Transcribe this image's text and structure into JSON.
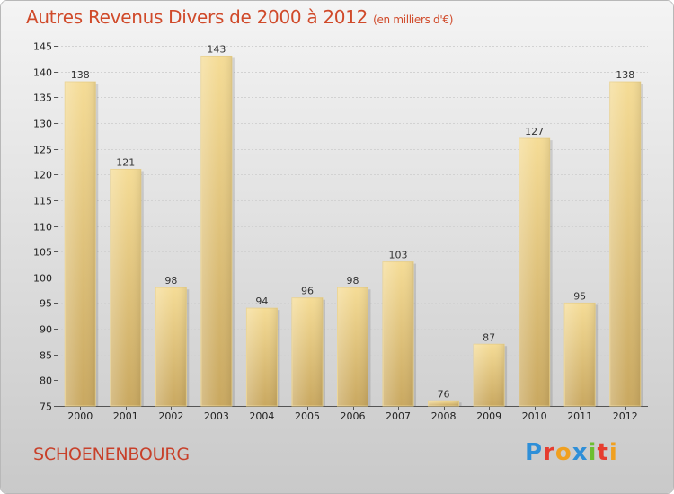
{
  "page": {
    "title": "Autres Revenus Divers de 2000 à 2012",
    "subtitle": "(en milliers d'€)",
    "commune": "SCHOENENBOURG",
    "logo": [
      {
        "ch": "P",
        "color": "#2e8fd8"
      },
      {
        "ch": "r",
        "color": "#e63d2f"
      },
      {
        "ch": "o",
        "color": "#f0a020"
      },
      {
        "ch": "x",
        "color": "#2e8fd8"
      },
      {
        "ch": "i",
        "color": "#6cbf30"
      },
      {
        "ch": "t",
        "color": "#e63d2f"
      },
      {
        "ch": "i",
        "color": "#f0a020"
      }
    ]
  },
  "chart_data": {
    "type": "bar",
    "categories": [
      "2000",
      "2001",
      "2002",
      "2003",
      "2004",
      "2005",
      "2006",
      "2007",
      "2008",
      "2009",
      "2010",
      "2011",
      "2012"
    ],
    "values": [
      138,
      121,
      98,
      143,
      94,
      96,
      98,
      103,
      76,
      87,
      127,
      95,
      138
    ],
    "title": "Autres Revenus Divers de 2000 à 2012",
    "subtitle": "(en milliers d'€)",
    "xlabel": "",
    "ylabel": "",
    "ylim": [
      75,
      145
    ],
    "yticks": [
      75,
      80,
      85,
      90,
      95,
      100,
      105,
      110,
      115,
      120,
      125,
      130,
      135,
      140,
      145
    ],
    "grid": "horizontal",
    "data_labels": true,
    "bar_color": "#e8cc7a"
  }
}
